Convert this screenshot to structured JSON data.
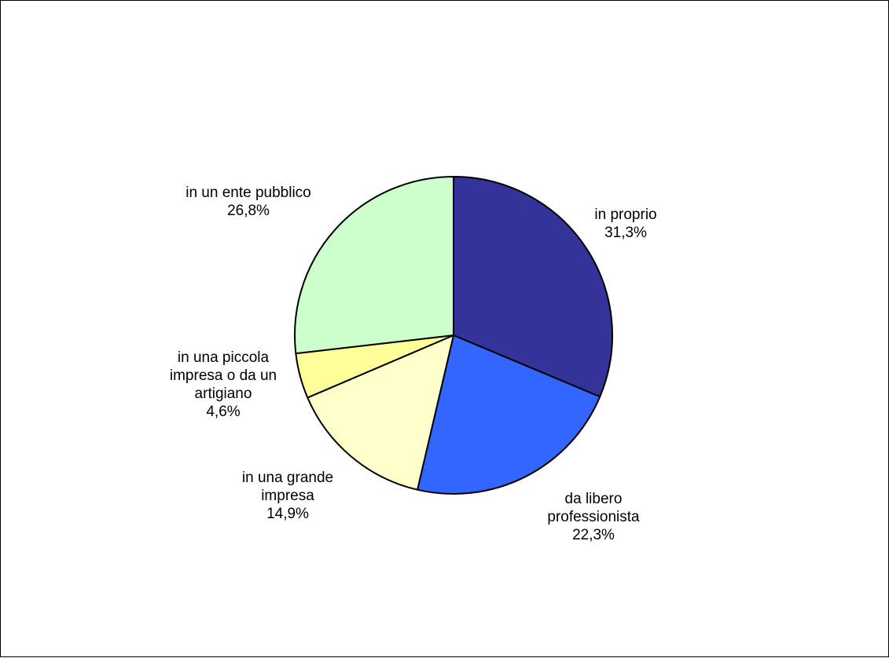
{
  "chart_data": {
    "type": "pie",
    "title": "",
    "start_angle_deg": 0,
    "direction": "clockwise",
    "slices": [
      {
        "label_lines": [
          "in proprio"
        ],
        "value_label": "31,3%",
        "value": 31.3,
        "color": "#333399"
      },
      {
        "label_lines": [
          "da libero",
          "professionista"
        ],
        "value_label": "22,3%",
        "value": 22.3,
        "color": "#3366FF"
      },
      {
        "label_lines": [
          "in una grande",
          "impresa"
        ],
        "value_label": "14,9%",
        "value": 14.9,
        "color": "#FFFFCC"
      },
      {
        "label_lines": [
          "in una piccola",
          "impresa o da un",
          "artigiano"
        ],
        "value_label": "4,6%",
        "value": 4.6,
        "color": "#FFFF99"
      },
      {
        "label_lines": [
          "in un ente pubblico"
        ],
        "value_label": "26,8%",
        "value": 26.8,
        "color": "#CCFFCC"
      }
    ],
    "legend": "none",
    "data_labels": "category and percent outside slices"
  }
}
